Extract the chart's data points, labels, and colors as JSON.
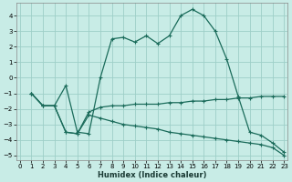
{
  "xlabel": "Humidex (Indice chaleur)",
  "bg_color": "#c8ece6",
  "grid_color": "#9ecfc8",
  "line_color": "#1a6b5a",
  "xlim": [
    -0.3,
    23.3
  ],
  "ylim": [
    -5.3,
    4.8
  ],
  "xticks": [
    0,
    1,
    2,
    3,
    4,
    5,
    6,
    7,
    8,
    9,
    10,
    11,
    12,
    13,
    14,
    15,
    16,
    17,
    18,
    19,
    20,
    21,
    22,
    23
  ],
  "yticks": [
    -5,
    -4,
    -3,
    -2,
    -1,
    0,
    1,
    2,
    3,
    4
  ],
  "line_main_x": [
    1,
    2,
    3,
    4,
    5,
    6,
    7,
    8,
    9,
    10,
    11,
    12,
    13,
    14,
    15,
    16,
    17,
    18,
    19,
    20,
    21,
    22,
    23
  ],
  "line_main_y": [
    -1.0,
    -1.8,
    -1.8,
    -0.5,
    -3.5,
    -3.6,
    0.0,
    2.5,
    2.6,
    2.3,
    2.7,
    2.2,
    2.7,
    4.0,
    4.4,
    4.0,
    3.0,
    1.2,
    -1.2,
    -3.5,
    -3.7,
    -4.2,
    -4.8
  ],
  "line_mid_x": [
    1,
    2,
    3,
    4,
    5,
    6,
    7,
    8,
    9,
    10,
    11,
    12,
    13,
    14,
    15,
    16,
    17,
    18,
    19,
    20,
    21,
    22,
    23
  ],
  "line_mid_y": [
    -1.0,
    -1.8,
    -1.8,
    -3.5,
    -3.6,
    -2.2,
    -1.9,
    -1.8,
    -1.8,
    -1.7,
    -1.7,
    -1.7,
    -1.6,
    -1.6,
    -1.5,
    -1.5,
    -1.4,
    -1.4,
    -1.3,
    -1.3,
    -1.2,
    -1.2,
    -1.2
  ],
  "line_low_x": [
    1,
    2,
    3,
    4,
    5,
    6,
    7,
    8,
    9,
    10,
    11,
    12,
    13,
    14,
    15,
    16,
    17,
    18,
    19,
    20,
    21,
    22,
    23
  ],
  "line_low_y": [
    -1.0,
    -1.8,
    -1.8,
    -3.5,
    -3.6,
    -2.4,
    -2.6,
    -2.8,
    -3.0,
    -3.1,
    -3.2,
    -3.3,
    -3.5,
    -3.6,
    -3.7,
    -3.8,
    -3.9,
    -4.0,
    -4.1,
    -4.2,
    -4.3,
    -4.5,
    -5.0
  ]
}
